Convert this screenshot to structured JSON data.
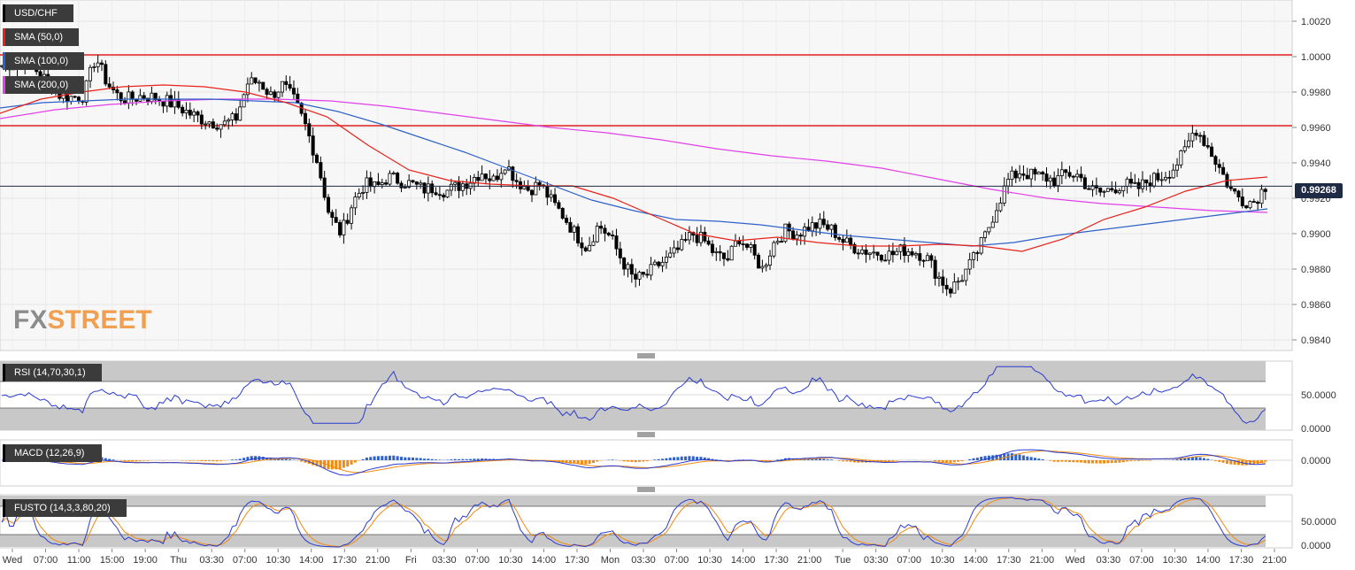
{
  "legend": {
    "symbol": "USD/CHF",
    "sma50": "SMA (50,0)",
    "sma100": "SMA (100,0)",
    "sma200": "SMA (200,0)"
  },
  "colors": {
    "sma50": "#e8221b",
    "sma100": "#2f62c8",
    "sma200": "#e040e8",
    "resistance": "#e02020",
    "price_line": "#1f2a44",
    "rsi": "#2a3bd1",
    "macd_line": "#2a3bd1",
    "macd_signal": "#f08a10",
    "macd_hist_pos": "#2f62c8",
    "macd_hist_neg": "#f08a10",
    "fusto_k": "#2a3bd1",
    "fusto_d": "#f08a10"
  },
  "last_price": "0.99268",
  "logo": {
    "part1": "FX",
    "part2": "STREET"
  },
  "indicators": {
    "rsi": {
      "label": "RSI (14,70,30,1)",
      "ticks": [
        "50.0000",
        "0.0000"
      ]
    },
    "macd": {
      "label": "MACD (12,26,9)",
      "ticks": [
        "0.0000"
      ]
    },
    "fusto": {
      "label": "FUSTO (14,3,3,80,20)",
      "ticks": [
        "50.0000",
        "0.0000"
      ]
    }
  },
  "chart_data": {
    "type": "candlestick",
    "title": "USD/CHF",
    "y_ticks": [
      "1.0020",
      "1.0000",
      "0.9980",
      "0.9960",
      "0.9940",
      "0.9920",
      "0.9900",
      "0.9880",
      "0.9860",
      "0.9840"
    ],
    "ylim": [
      0.9836,
      1.0028
    ],
    "x_ticks": [
      "Wed",
      "07:00",
      "11:00",
      "15:00",
      "19:00",
      "Thu",
      "03:30",
      "07:00",
      "10:30",
      "14:00",
      "17:30",
      "21:00",
      "Fri",
      "03:30",
      "07:00",
      "10:30",
      "14:00",
      "17:30",
      "Mon",
      "03:30",
      "07:00",
      "10:30",
      "14:00",
      "17:30",
      "21:00",
      "Tue",
      "03:30",
      "07:00",
      "10:30",
      "14:00",
      "17:30",
      "21:00",
      "Wed",
      "03:30",
      "07:00",
      "10:30",
      "14:00",
      "17:30",
      "21:00"
    ],
    "horizontal_levels": [
      1.0001,
      0.9961
    ],
    "current_price": 0.99268,
    "close_path": [
      0.9995,
      0.9996,
      0.9998,
      0.9992,
      0.9985,
      0.9978,
      0.9977,
      0.9978,
      1.0,
      0.9985,
      0.9977,
      0.9976,
      0.9978,
      0.9977,
      0.9975,
      0.9972,
      0.9968,
      0.9965,
      0.9963,
      0.9962,
      0.9965,
      0.9985,
      0.9986,
      0.9978,
      0.9984,
      0.9975,
      0.996,
      0.994,
      0.991,
      0.99,
      0.9918,
      0.9928,
      0.9926,
      0.9932,
      0.993,
      0.9928,
      0.9925,
      0.9926,
      0.9924,
      0.9927,
      0.993,
      0.9935,
      0.993,
      0.994,
      0.993,
      0.9925,
      0.9928,
      0.9918,
      0.991,
      0.99,
      0.9892,
      0.9905,
      0.9898,
      0.9885,
      0.9874,
      0.9876,
      0.9882,
      0.9886,
      0.9892,
      0.99,
      0.9896,
      0.9888,
      0.9885,
      0.9898,
      0.989,
      0.988,
      0.9895,
      0.9902,
      0.99,
      0.9904,
      0.9905,
      0.9902,
      0.9895,
      0.9892,
      0.989,
      0.9889,
      0.9888,
      0.9891,
      0.989,
      0.9887,
      0.9876,
      0.9868,
      0.9875,
      0.9885,
      0.9898,
      0.9915,
      0.993,
      0.9935,
      0.9933,
      0.9932,
      0.993,
      0.9934,
      0.9933,
      0.9925,
      0.9923,
      0.9926,
      0.9928,
      0.9925,
      0.993,
      0.9932,
      0.9936,
      0.9945,
      0.996,
      0.995,
      0.9938,
      0.9925,
      0.9919,
      0.9918,
      0.9927
    ],
    "sma50": [
      0.9968,
      0.9976,
      0.998,
      0.9983,
      0.9984,
      0.9983,
      0.998,
      0.9974,
      0.9966,
      0.995,
      0.9936,
      0.993,
      0.9928,
      0.9927,
      0.9927,
      0.992,
      0.991,
      0.99,
      0.9896,
      0.9898,
      0.9895,
      0.9893,
      0.9893,
      0.9894,
      0.9893,
      0.989,
      0.9897,
      0.9908,
      0.9915,
      0.9924,
      0.993,
      0.9932
    ],
    "sma100": [
      0.9971,
      0.9974,
      0.9975,
      0.9976,
      0.9976,
      0.9976,
      0.9975,
      0.9974,
      0.9969,
      0.9962,
      0.9954,
      0.9946,
      0.9937,
      0.9928,
      0.9919,
      0.9913,
      0.9908,
      0.9907,
      0.9905,
      0.9902,
      0.9899,
      0.9897,
      0.9895,
      0.9893,
      0.9895,
      0.9899,
      0.9902,
      0.9905,
      0.9908,
      0.9911,
      0.9914
    ],
    "sma200": [
      0.9965,
      0.997,
      0.9973,
      0.9975,
      0.9976,
      0.9976,
      0.9975,
      0.9972,
      0.9968,
      0.9964,
      0.996,
      0.9957,
      0.9953,
      0.9948,
      0.9944,
      0.9941,
      0.9937,
      0.9931,
      0.9925,
      0.992,
      0.9917,
      0.9915,
      0.9913,
      0.9912
    ]
  }
}
